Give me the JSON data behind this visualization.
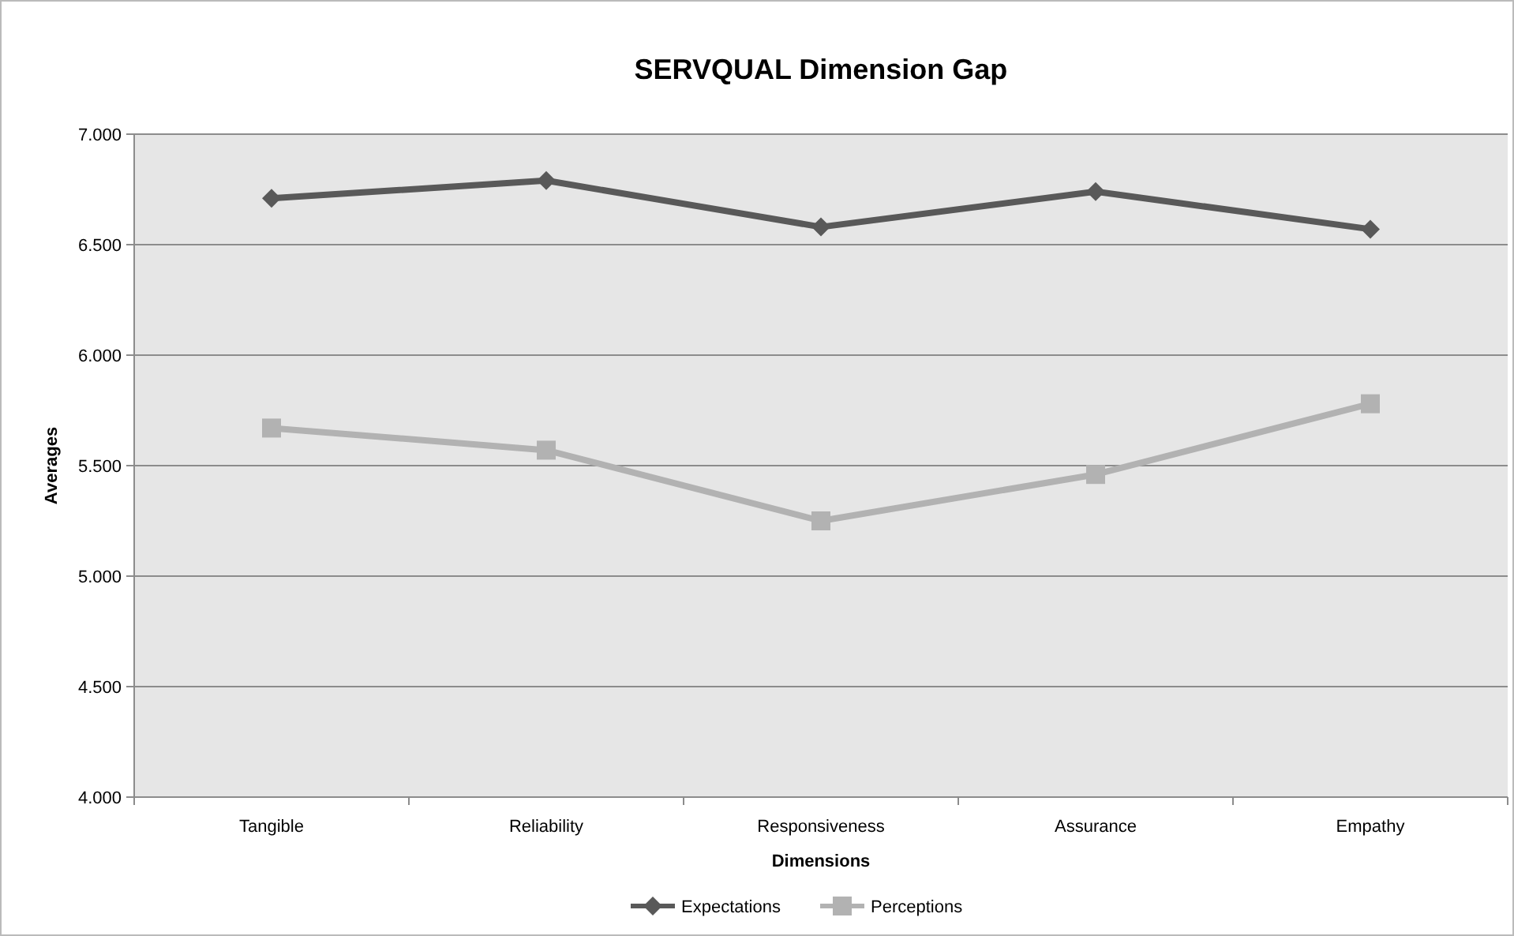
{
  "chart_data": {
    "type": "line",
    "title": "SERVQUAL Dimension Gap",
    "xlabel": "Dimensions",
    "ylabel": "Averages",
    "categories": [
      "Tangible",
      "Reliability",
      "Responsiveness",
      "Assurance",
      "Empathy"
    ],
    "series": [
      {
        "name": "Expectations",
        "color": "#595959",
        "marker": "diamond",
        "values": [
          6.71,
          6.79,
          6.58,
          6.74,
          6.57
        ]
      },
      {
        "name": "Perceptions",
        "color": "#b2b2b2",
        "marker": "square",
        "values": [
          5.67,
          5.57,
          5.25,
          5.46,
          5.78
        ]
      }
    ],
    "ylim": [
      4,
      7
    ],
    "yticks": [
      {
        "value": 4,
        "label": "4.000"
      },
      {
        "value": 4.5,
        "label": "4.500"
      },
      {
        "value": 5,
        "label": "5.000"
      },
      {
        "value": 5.5,
        "label": "5.500"
      },
      {
        "value": 6,
        "label": "6.000"
      },
      {
        "value": 6.5,
        "label": "6.500"
      },
      {
        "value": 7,
        "label": "7.000"
      }
    ],
    "grid": "y",
    "legend": "bottom",
    "line_style": "solid"
  }
}
